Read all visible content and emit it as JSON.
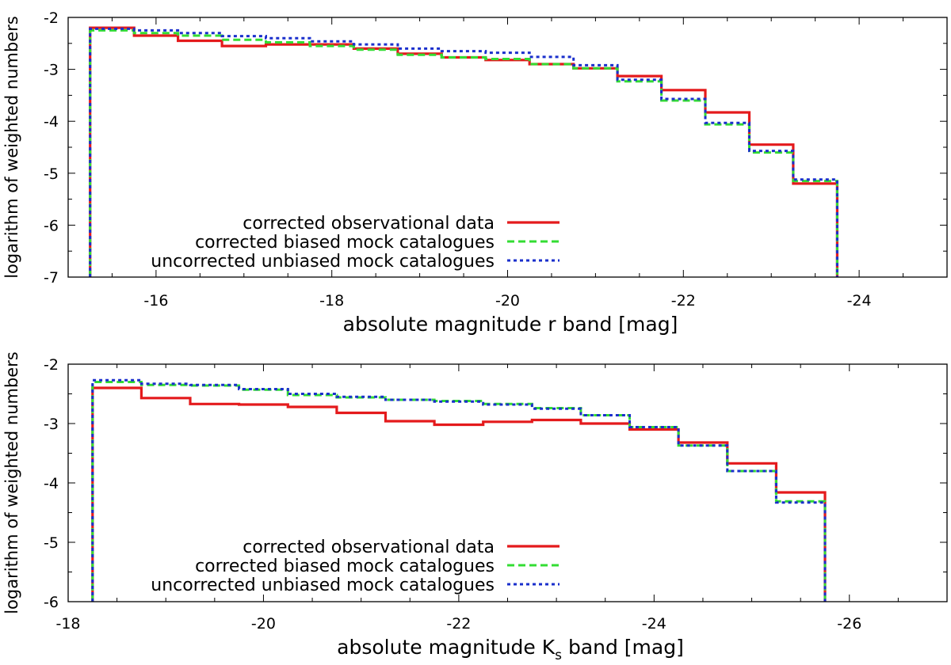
{
  "chart_data": [
    {
      "type": "step",
      "xlabel": "absolute magnitude r band [mag]",
      "ylabel": "logarithm of weighted numbers",
      "xlim": [
        -15,
        -25
      ],
      "ylim": [
        -7,
        -2
      ],
      "xticks": [
        -16,
        -18,
        -20,
        -22,
        -24
      ],
      "xtick_labels": [
        "-16",
        "-18",
        "-20",
        "-22",
        "-24"
      ],
      "yticks": [
        -2,
        -3,
        -4,
        -5,
        -6,
        -7
      ],
      "ytick_labels": [
        "-2",
        "-3",
        "-4",
        "-5",
        "-6",
        "-7"
      ],
      "legend_position": "lower-left",
      "edges": [
        -15.25,
        -15.75,
        -16.25,
        -16.75,
        -17.25,
        -17.75,
        -18.25,
        -18.75,
        -19.25,
        -19.75,
        -20.25,
        -20.75,
        -21.25,
        -21.75,
        -22.25,
        -22.75,
        -23.25,
        -23.75
      ],
      "series": [
        {
          "name": "corrected observational data",
          "color": "#e41a1c",
          "style": "solid",
          "values": [
            -2.2,
            -2.35,
            -2.45,
            -2.55,
            -2.52,
            -2.52,
            -2.6,
            -2.7,
            -2.77,
            -2.82,
            -2.9,
            -2.98,
            -3.13,
            -3.4,
            -3.83,
            -4.45,
            -5.2
          ]
        },
        {
          "name": "corrected biased mock catalogues",
          "color": "#33dd33",
          "style": "dashed",
          "values": [
            -2.25,
            -2.3,
            -2.35,
            -2.43,
            -2.48,
            -2.55,
            -2.62,
            -2.72,
            -2.77,
            -2.8,
            -2.9,
            -2.98,
            -3.23,
            -3.6,
            -4.06,
            -4.6,
            -5.15
          ]
        },
        {
          "name": "uncorrected unbiased mock catalogues",
          "color": "#1a2fcc",
          "style": "dotted",
          "values": [
            -2.22,
            -2.25,
            -2.3,
            -2.36,
            -2.4,
            -2.46,
            -2.52,
            -2.6,
            -2.65,
            -2.68,
            -2.76,
            -2.92,
            -3.2,
            -3.57,
            -4.03,
            -4.57,
            -5.12
          ]
        }
      ]
    },
    {
      "type": "step",
      "xlabel": "absolute magnitude K",
      "xlabel_subscript": "s",
      "xlabel_suffix": "band [mag]",
      "ylabel": "logarithm of weighted numbers",
      "xlim": [
        -18,
        -27
      ],
      "ylim": [
        -6,
        -2
      ],
      "xticks": [
        -18,
        -20,
        -22,
        -24,
        -26
      ],
      "xtick_labels": [
        "-18",
        "-20",
        "-22",
        "-24",
        "-26"
      ],
      "yticks": [
        -2,
        -3,
        -4,
        -5,
        -6
      ],
      "ytick_labels": [
        "-2",
        "-3",
        "-4",
        "-5",
        "-6"
      ],
      "legend_position": "lower-left",
      "edges": [
        -18.25,
        -18.75,
        -19.25,
        -19.75,
        -20.25,
        -20.75,
        -21.25,
        -21.75,
        -22.25,
        -22.75,
        -23.25,
        -23.75,
        -24.25,
        -24.75,
        -25.25,
        -25.75
      ],
      "series": [
        {
          "name": "corrected observational data",
          "color": "#e41a1c",
          "style": "solid",
          "values": [
            -2.4,
            -2.57,
            -2.67,
            -2.68,
            -2.72,
            -2.82,
            -2.96,
            -3.02,
            -2.97,
            -2.94,
            -3.0,
            -3.1,
            -3.32,
            -3.67,
            -4.16
          ]
        },
        {
          "name": "corrected biased mock catalogues",
          "color": "#33dd33",
          "style": "dashed",
          "values": [
            -2.3,
            -2.35,
            -2.36,
            -2.43,
            -2.52,
            -2.56,
            -2.6,
            -2.62,
            -2.67,
            -2.74,
            -2.86,
            -3.06,
            -3.37,
            -3.8,
            -4.31
          ]
        },
        {
          "name": "uncorrected unbiased mock catalogues",
          "color": "#1a2fcc",
          "style": "dotted",
          "values": [
            -2.27,
            -2.33,
            -2.35,
            -2.42,
            -2.5,
            -2.55,
            -2.6,
            -2.63,
            -2.68,
            -2.75,
            -2.86,
            -3.06,
            -3.37,
            -3.8,
            -4.33
          ]
        }
      ]
    }
  ]
}
